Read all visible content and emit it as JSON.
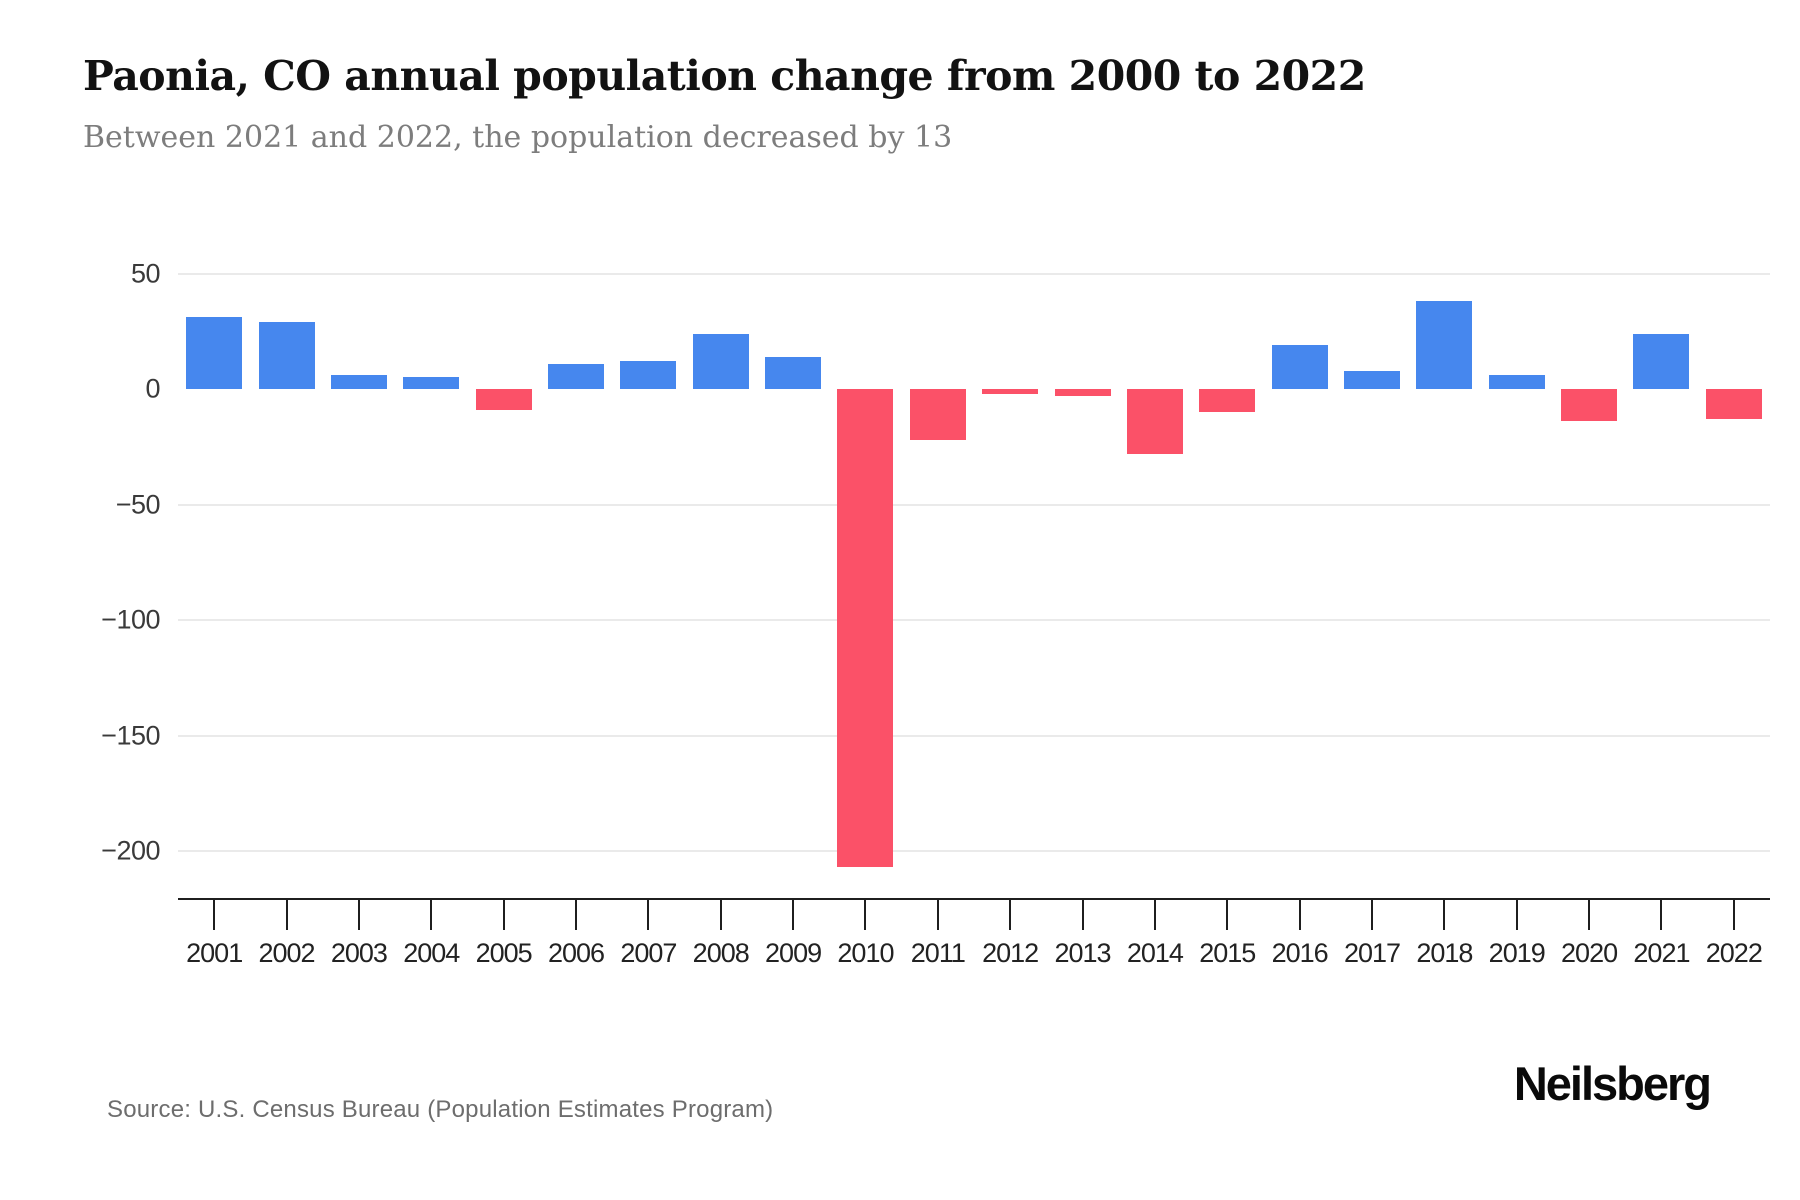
{
  "header": {
    "title": "Paonia, CO annual population change from 2000 to 2022",
    "subtitle": "Between 2021 and 2022, the population decreased by 13"
  },
  "chart_data": {
    "type": "bar",
    "title": "Paonia, CO annual population change from 2000 to 2022",
    "subtitle": "Between 2021 and 2022, the population decreased by 13",
    "categories": [
      "2001",
      "2002",
      "2003",
      "2004",
      "2005",
      "2006",
      "2007",
      "2008",
      "2009",
      "2010",
      "2011",
      "2012",
      "2013",
      "2014",
      "2015",
      "2016",
      "2017",
      "2018",
      "2019",
      "2020",
      "2021",
      "2022"
    ],
    "values": [
      31,
      29,
      6,
      5,
      -9,
      11,
      12,
      24,
      14,
      -207,
      -22,
      -2,
      -3,
      -28,
      -10,
      19,
      8,
      38,
      6,
      -14,
      24,
      -13
    ],
    "xlabel": "",
    "ylabel": "",
    "ylim": [
      -220,
      60
    ],
    "yticks": [
      50,
      0,
      -50,
      -100,
      -150,
      -200
    ],
    "grid": "horizontal-only-no-zero-line",
    "legend": "none",
    "colors": {
      "positive": "#4687ee",
      "negative": "#fb5168"
    }
  },
  "footer": {
    "source": "Source: U.S. Census Bureau (Population Estimates Program)",
    "brand": "Neilsberg"
  }
}
